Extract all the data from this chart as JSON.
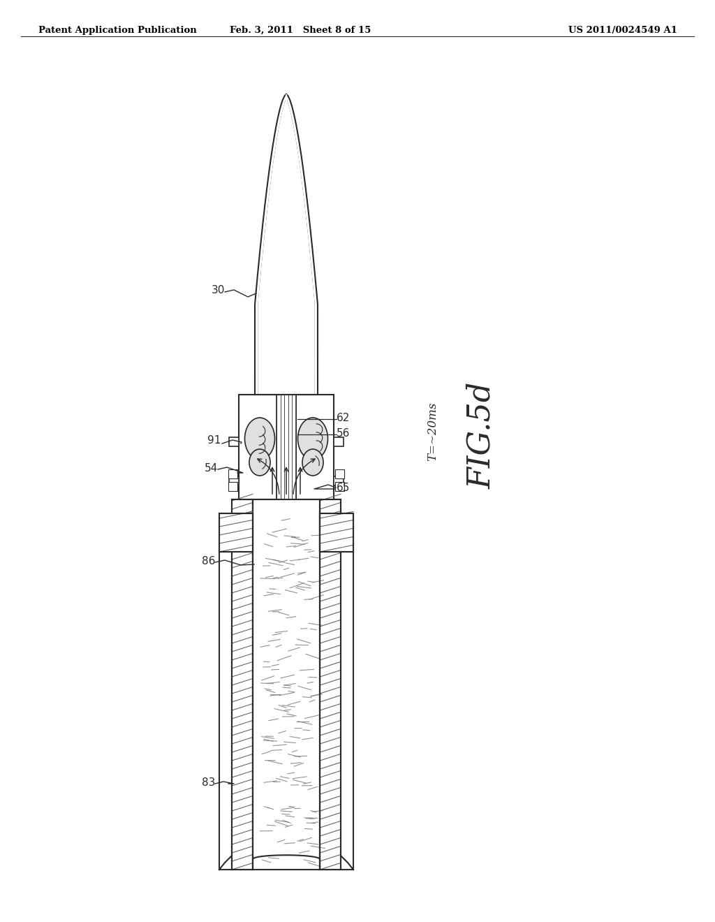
{
  "background_color": "#ffffff",
  "header_left": "Patent Application Publication",
  "header_mid": "Feb. 3, 2011   Sheet 8 of 15",
  "header_right": "US 2011/0024549 A1",
  "figure_label": "FIG.5d",
  "time_label": "T=~20ms",
  "label_30": "30",
  "label_91": "91",
  "label_62": "62",
  "label_56": "56",
  "label_54": "54",
  "label_65": "65",
  "label_86": "86",
  "label_83": "83",
  "line_color": "#2a2a2a",
  "hatch_color": "#555555"
}
